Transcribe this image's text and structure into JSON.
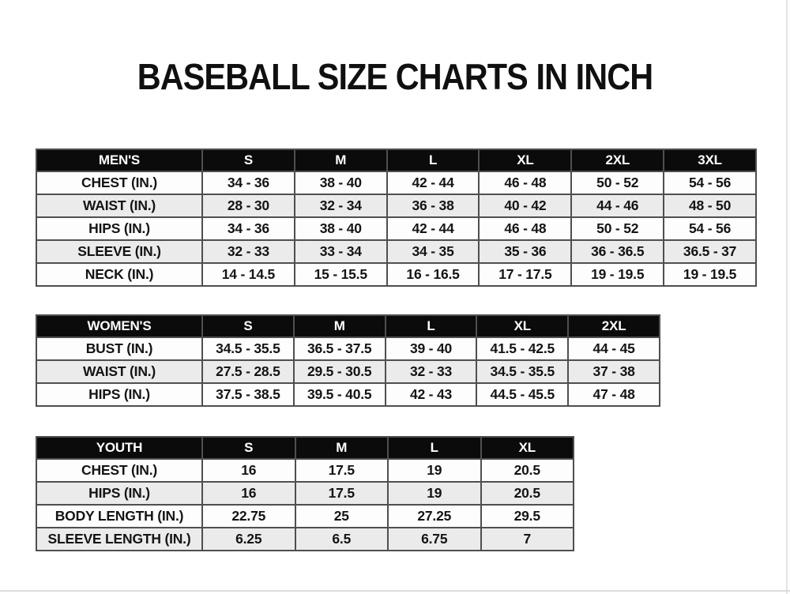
{
  "page_title": "BASEBALL SIZE CHARTS IN INCH",
  "colors": {
    "header_bg": "#0b0b0b",
    "header_text": "#ffffff",
    "row_bg": "#ffffff",
    "row_alt_bg": "#ebebeb",
    "border": "#4f4f4f",
    "title_text": "#101010"
  },
  "chart_data": [
    {
      "type": "table",
      "title": "MEN'S",
      "columns": [
        "S",
        "M",
        "L",
        "XL",
        "2XL",
        "3XL"
      ],
      "rows": [
        {
          "label": "CHEST (IN.)",
          "values": [
            "34 - 36",
            "38 - 40",
            "42 - 44",
            "46 - 48",
            "50 - 52",
            "54 - 56"
          ]
        },
        {
          "label": "WAIST (IN.)",
          "values": [
            "28 - 30",
            "32 - 34",
            "36 - 38",
            "40 - 42",
            "44 - 46",
            "48 - 50"
          ]
        },
        {
          "label": "HIPS (IN.)",
          "values": [
            "34 - 36",
            "38 - 40",
            "42 - 44",
            "46 - 48",
            "50 - 52",
            "54 - 56"
          ]
        },
        {
          "label": "SLEEVE (IN.)",
          "values": [
            "32 - 33",
            "33 - 34",
            "34 - 35",
            "35 - 36",
            "36 - 36.5",
            "36.5 - 37"
          ]
        },
        {
          "label": "NECK (IN.)",
          "values": [
            "14 - 14.5",
            "15 - 15.5",
            "16 - 16.5",
            "17 - 17.5",
            "19 - 19.5",
            "19 - 19.5"
          ]
        }
      ]
    },
    {
      "type": "table",
      "title": "WOMEN'S",
      "columns": [
        "S",
        "M",
        "L",
        "XL",
        "2XL"
      ],
      "rows": [
        {
          "label": "BUST (IN.)",
          "values": [
            "34.5 - 35.5",
            "36.5 - 37.5",
            "39 - 40",
            "41.5 - 42.5",
            "44 - 45"
          ]
        },
        {
          "label": "WAIST (IN.)",
          "values": [
            "27.5 - 28.5",
            "29.5 - 30.5",
            "32 - 33",
            "34.5 - 35.5",
            "37 - 38"
          ]
        },
        {
          "label": "HIPS (IN.)",
          "values": [
            "37.5 - 38.5",
            "39.5 - 40.5",
            "42 - 43",
            "44.5 - 45.5",
            "47 - 48"
          ]
        }
      ]
    },
    {
      "type": "table",
      "title": "YOUTH",
      "columns": [
        "S",
        "M",
        "L",
        "XL"
      ],
      "rows": [
        {
          "label": "CHEST (IN.)",
          "values": [
            "16",
            "17.5",
            "19",
            "20.5"
          ]
        },
        {
          "label": "HIPS (IN.)",
          "values": [
            "16",
            "17.5",
            "19",
            "20.5"
          ]
        },
        {
          "label": "BODY LENGTH (IN.)",
          "values": [
            "22.75",
            "25",
            "27.25",
            "29.5"
          ]
        },
        {
          "label": "SLEEVE LENGTH (IN.)",
          "values": [
            "6.25",
            "6.5",
            "6.75",
            "7"
          ]
        }
      ]
    }
  ]
}
